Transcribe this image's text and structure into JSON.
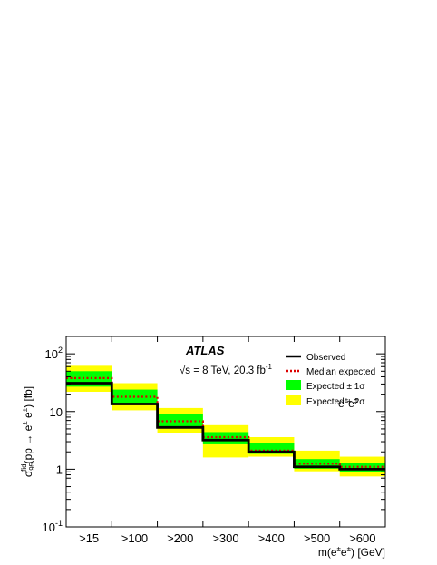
{
  "chart_data": {
    "type": "step",
    "title": "",
    "categories": [
      ">15",
      ">100",
      ">200",
      ">300",
      ">400",
      ">500",
      ">600"
    ],
    "ylabel": "σ95fid(pp → e± e±) [fb]",
    "xlabel": "m(e±e±) [GeV]",
    "y_scale": "log",
    "ylim": [
      0.1,
      200
    ],
    "y_ticks": [
      {
        "value": 100,
        "base": "10",
        "exp": "2"
      },
      {
        "value": 10,
        "base": "10",
        "exp": ""
      },
      {
        "value": 1,
        "base": "1",
        "exp": ""
      },
      {
        "value": 0.1,
        "base": "10",
        "exp": "-1"
      }
    ],
    "series": [
      {
        "name": "Observed",
        "values": [
          31,
          13.5,
          5.3,
          3.2,
          2.0,
          1.1,
          1.0
        ],
        "color": "#000000",
        "style": "solid"
      },
      {
        "name": "Median expected",
        "values": [
          38,
          18,
          6.8,
          3.6,
          2.1,
          1.25,
          1.1
        ],
        "color": "#dd0000",
        "style": "dotted"
      }
    ],
    "bands": [
      {
        "name": "Expected ± 2σ",
        "low": [
          22,
          10.5,
          4.3,
          1.6,
          1.65,
          0.92,
          0.75
        ],
        "high": [
          62,
          31,
          11.5,
          5.8,
          3.6,
          2.1,
          1.65
        ],
        "color": "#ffff00"
      },
      {
        "name": "Expected ± 1σ",
        "low": [
          27,
          14,
          5.5,
          2.7,
          1.85,
          1.02,
          0.88
        ],
        "high": [
          50,
          24,
          9.2,
          4.4,
          2.85,
          1.5,
          1.3
        ],
        "color": "#00ff00"
      }
    ],
    "legend_placement": "top-right",
    "annotations": {
      "experiment": "ATLAS",
      "energy_prefix": "√s = 8 TeV, 20.3 fb",
      "energy_sup": "-1",
      "channel_base": "e",
      "channel_sup1": "±",
      "channel_mid": "e",
      "channel_sup2": "±"
    }
  }
}
